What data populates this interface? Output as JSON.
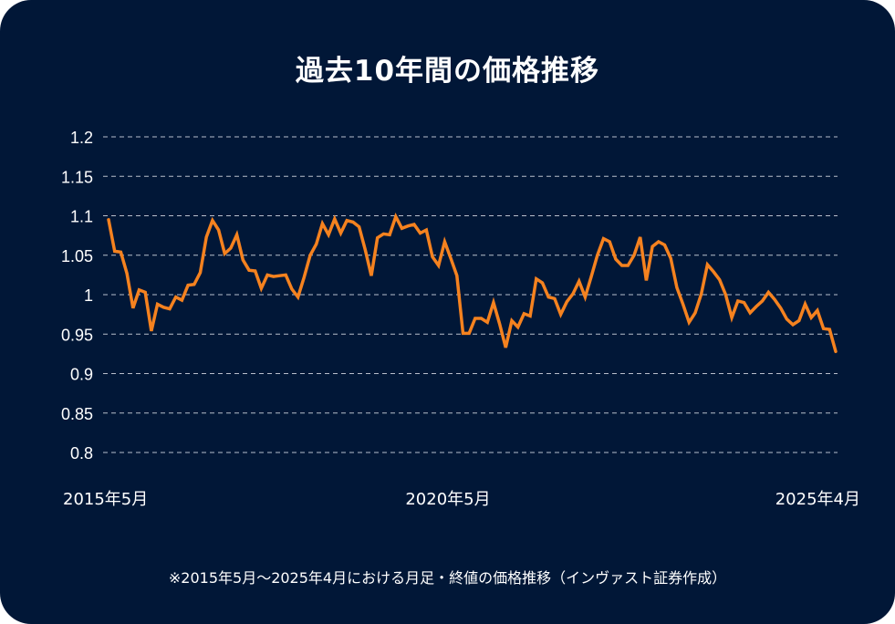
{
  "chart_data": {
    "type": "line",
    "title": "過去10年間の価格推移",
    "x_start": "2015-05",
    "x_end": "2025-04",
    "x_tick_labels": [
      "2015年5月",
      "2020年5月",
      "2025年4月"
    ],
    "y_ticks": [
      1.2,
      1.15,
      1.1,
      1.05,
      1,
      0.95,
      0.9,
      0.85,
      0.8
    ],
    "y_tick_labels": [
      "1.2",
      "1.15",
      "1.1",
      "1.05",
      "1",
      "0.95",
      "0.9",
      "0.85",
      "0.8"
    ],
    "ylim": [
      0.8,
      1.2
    ],
    "grid": "horizontal dashed",
    "line_color": "#f5821f",
    "background_color": "#011737",
    "values": [
      1.095,
      1.055,
      1.054,
      1.027,
      0.983,
      1.006,
      1.003,
      0.954,
      0.988,
      0.984,
      0.982,
      0.997,
      0.993,
      1.012,
      1.013,
      1.028,
      1.073,
      1.094,
      1.082,
      1.052,
      1.059,
      1.076,
      1.044,
      1.031,
      1.03,
      1.008,
      1.025,
      1.023,
      1.024,
      1.025,
      1.007,
      0.997,
      1.022,
      1.05,
      1.064,
      1.09,
      1.076,
      1.096,
      1.078,
      1.094,
      1.092,
      1.086,
      1.057,
      1.024,
      1.072,
      1.077,
      1.076,
      1.099,
      1.084,
      1.087,
      1.089,
      1.078,
      1.082,
      1.048,
      1.037,
      1.067,
      1.046,
      1.024,
      0.951,
      0.951,
      0.97,
      0.97,
      0.965,
      0.99,
      0.963,
      0.933,
      0.967,
      0.959,
      0.976,
      0.973,
      1.02,
      1.015,
      0.997,
      0.995,
      0.975,
      0.991,
      1.001,
      1.017,
      0.997,
      1.023,
      1.05,
      1.071,
      1.067,
      1.045,
      1.037,
      1.037,
      1.05,
      1.073,
      1.018,
      1.061,
      1.067,
      1.063,
      1.046,
      1.009,
      0.988,
      0.965,
      0.977,
      1.001,
      1.038,
      1.029,
      1.019,
      1.0,
      0.971,
      0.992,
      0.99,
      0.977,
      0.985,
      0.992,
      1.003,
      0.994,
      0.983,
      0.969,
      0.962,
      0.967,
      0.988,
      0.971,
      0.98,
      0.957,
      0.956,
      0.928
    ]
  },
  "footnote": "※2015年5月～2025年4月における月足・終値の価格推移（インヴァスト証券作成）"
}
